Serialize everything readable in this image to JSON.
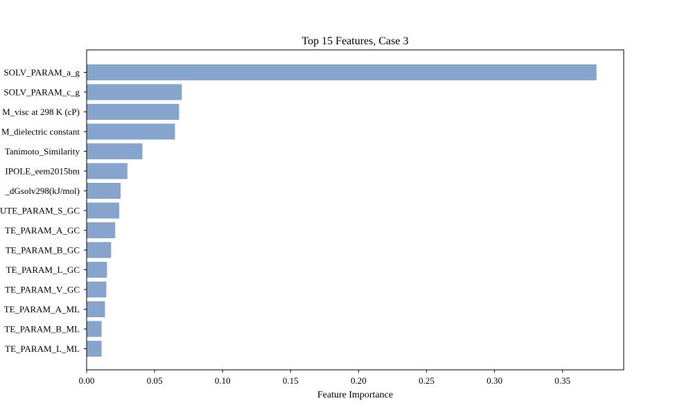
{
  "chart_data": {
    "type": "bar",
    "orientation": "horizontal",
    "title": "Top 15 Features, Case 3",
    "xlabel": "Feature Importance",
    "ylabel": "",
    "xlim": [
      0,
      0.395
    ],
    "xticks": [
      0.0,
      0.05,
      0.1,
      0.15,
      0.2,
      0.25,
      0.3,
      0.35
    ],
    "xtick_labels": [
      "0.00",
      "0.05",
      "0.10",
      "0.15",
      "0.20",
      "0.25",
      "0.30",
      "0.35"
    ],
    "grid": false,
    "bar_color": "#86a4cc",
    "categories": [
      "SOLV_PARAM_a_g",
      "SOLV_PARAM_c_g",
      "M_visc at 298 K (cP)",
      "M_dielectric constant",
      "Tanimoto_Similarity",
      "IPOLE_eem2015bm",
      "_dGsolv298(kJ/mol)",
      "UTE_PARAM_S_GC",
      "TE_PARAM_A_GC",
      "TE_PARAM_B_GC",
      "TE_PARAM_L_GC",
      "TE_PARAM_V_GC",
      "TE_PARAM_A_ML",
      "TE_PARAM_B_ML",
      "TE_PARAM_L_ML"
    ],
    "values": [
      0.375,
      0.07,
      0.068,
      0.065,
      0.041,
      0.03,
      0.025,
      0.024,
      0.021,
      0.018,
      0.015,
      0.0145,
      0.0135,
      0.011,
      0.011
    ]
  }
}
